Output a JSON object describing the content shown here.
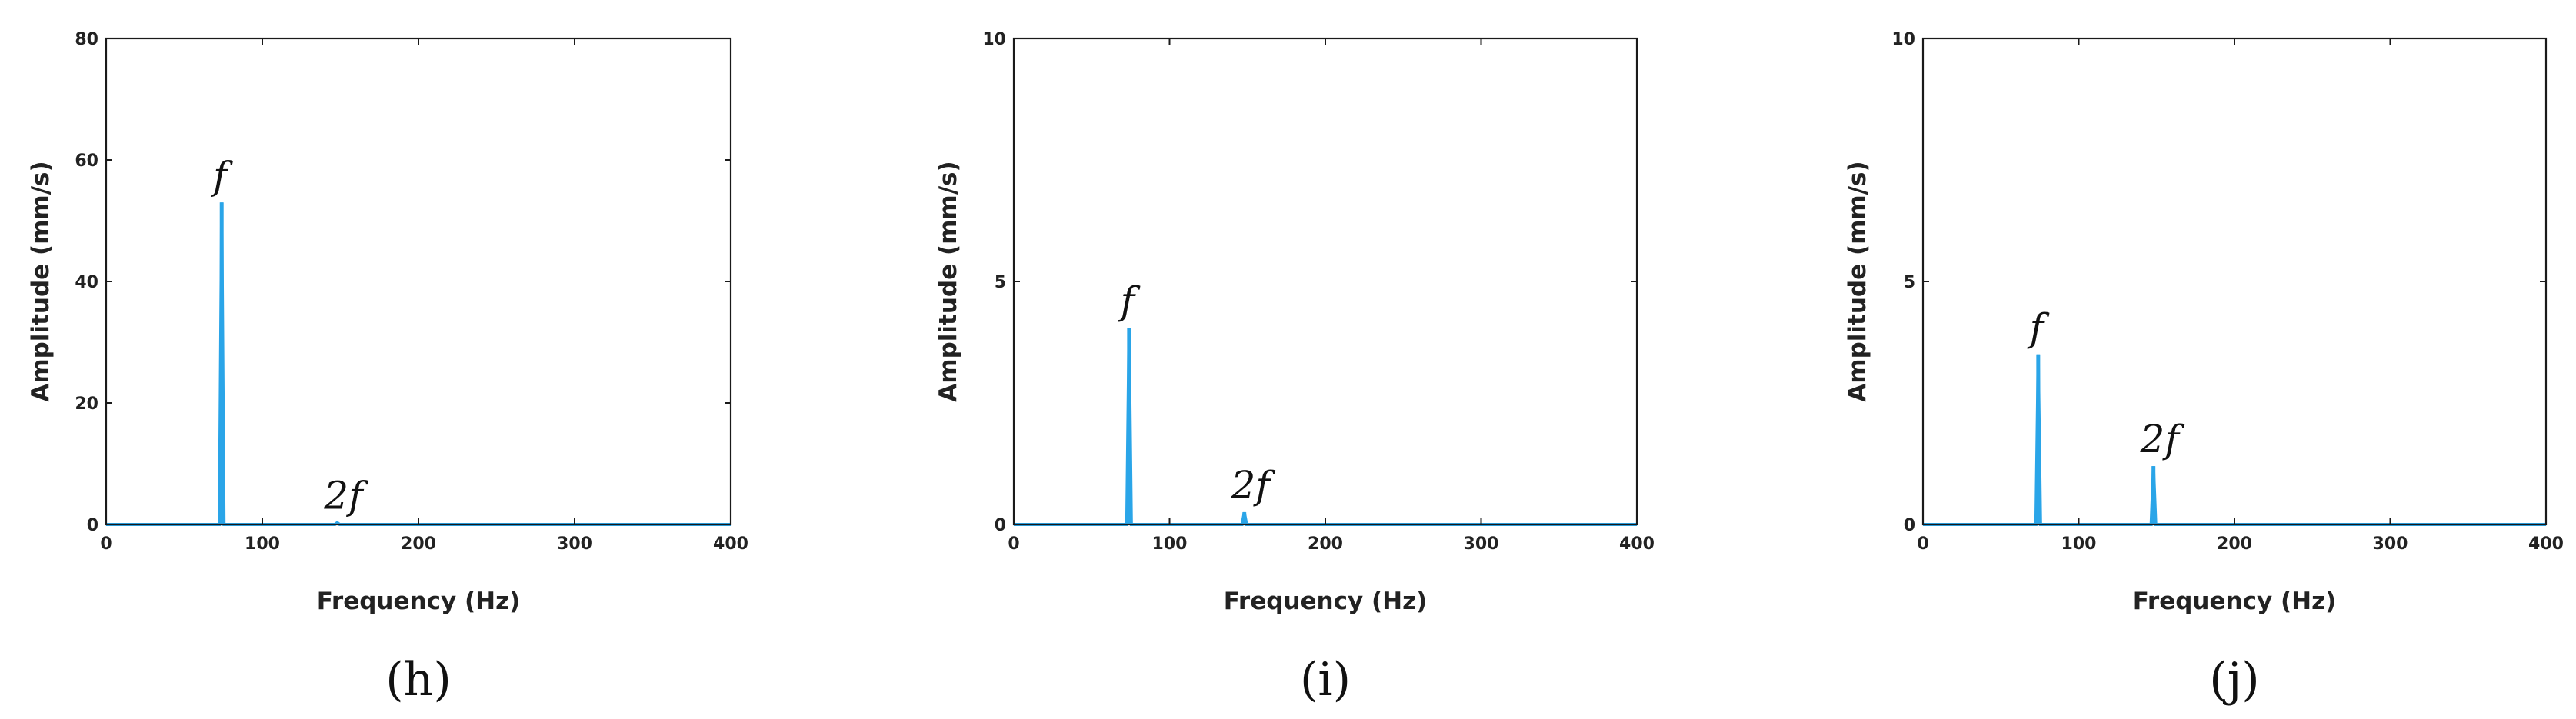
{
  "chart_data": [
    {
      "type": "line",
      "caption": "(h)",
      "xlabel": "Frequency (Hz)",
      "ylabel": "Amplitude (mm/s)",
      "xlim": [
        0,
        400
      ],
      "ylim": [
        0,
        80
      ],
      "xticks": [
        0,
        100,
        200,
        300,
        400
      ],
      "yticks": [
        0,
        20,
        40,
        60,
        80
      ],
      "grid": false,
      "color": "#2aa5e8",
      "peaks": [
        {
          "x": 74,
          "y": 53,
          "label": "f"
        },
        {
          "x": 148,
          "y": 0.3,
          "label": "2f"
        }
      ]
    },
    {
      "type": "line",
      "caption": "(i)",
      "xlabel": "Frequency (Hz)",
      "ylabel": "Amplitude (mm/s)",
      "xlim": [
        0,
        400
      ],
      "ylim": [
        0,
        10
      ],
      "xticks": [
        0,
        100,
        200,
        300,
        400
      ],
      "yticks": [
        0,
        5,
        10
      ],
      "grid": false,
      "color": "#2aa5e8",
      "peaks": [
        {
          "x": 74,
          "y": 4.05,
          "label": "f"
        },
        {
          "x": 148,
          "y": 0.25,
          "label": "2f"
        }
      ]
    },
    {
      "type": "line",
      "caption": "(j)",
      "xlabel": "Frequency (Hz)",
      "ylabel": "Amplitude (mm/s)",
      "xlim": [
        0,
        400
      ],
      "ylim": [
        0,
        10
      ],
      "xticks": [
        0,
        100,
        200,
        300,
        400
      ],
      "yticks": [
        0,
        5,
        10
      ],
      "grid": false,
      "color": "#2aa5e8",
      "peaks": [
        {
          "x": 74,
          "y": 3.5,
          "label": "f"
        },
        {
          "x": 148,
          "y": 1.2,
          "label": "2f"
        }
      ]
    }
  ]
}
